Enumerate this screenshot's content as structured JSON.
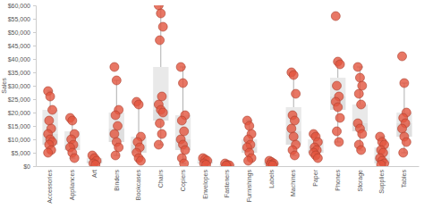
{
  "chart_data": {
    "type": "box",
    "y_label": "Sales",
    "color": "#e2553f",
    "categories": [
      "Accessories",
      "Appliances",
      "Art",
      "Binders",
      "Bookcases",
      "Chairs",
      "Copiers",
      "Envelopes",
      "Fasteners",
      "Furnishings",
      "Labels",
      "Machines",
      "Paper",
      "Phones",
      "Storage",
      "Supplies",
      "Tables"
    ],
    "points": [
      [
        28000,
        26000,
        21000,
        17000,
        14000,
        12000,
        10000,
        9000,
        8000,
        6000,
        5000
      ],
      [
        18000,
        17000,
        12000,
        10000,
        8000,
        7000,
        5000,
        3000
      ],
      [
        4000,
        3000,
        2000,
        1000,
        500
      ],
      [
        37000,
        32000,
        21000,
        19000,
        15000,
        12000,
        9000,
        7000,
        4000
      ],
      [
        24000,
        23000,
        11000,
        9000,
        7000,
        5000,
        3000,
        2000
      ],
      [
        60000,
        57000,
        52000,
        47000,
        26000,
        23000,
        21000,
        20000,
        16000,
        12000,
        8000
      ],
      [
        37000,
        31000,
        19000,
        17000,
        13000,
        10000,
        8000,
        6000,
        3000,
        1000
      ],
      [
        3000,
        2500,
        2000,
        1000,
        500
      ],
      [
        1000,
        500,
        300,
        200
      ],
      [
        17000,
        15000,
        12000,
        10000,
        8000,
        7000,
        5000,
        3000,
        2000
      ],
      [
        2000,
        1500,
        1000,
        500,
        300
      ],
      [
        35000,
        34000,
        27000,
        19000,
        17000,
        14000,
        11000,
        8000,
        6000,
        4000
      ],
      [
        12000,
        11000,
        9000,
        7000,
        6000,
        5000,
        4000,
        3000
      ],
      [
        56000,
        39000,
        38000,
        30000,
        26000,
        24000,
        22000,
        18000,
        13000,
        9000
      ],
      [
        37000,
        33000,
        30000,
        27000,
        23000,
        16000,
        14000,
        12000,
        8000,
        6000
      ],
      [
        11000,
        9000,
        8000,
        6000,
        5000,
        3000,
        2000,
        1000,
        500
      ],
      [
        41000,
        31000,
        20000,
        18000,
        16000,
        14000,
        11000,
        9000,
        5000
      ]
    ],
    "boxes": [
      {
        "whisker_low": 5000,
        "q1": 8000,
        "median": 12000,
        "q3": 21000,
        "whisker_high": 28000
      },
      {
        "whisker_low": 3000,
        "q1": 6000,
        "median": 8000,
        "q3": 13000,
        "whisker_high": 18000
      },
      {
        "whisker_low": 500,
        "q1": 1000,
        "median": 2000,
        "q3": 3000,
        "whisker_high": 4000
      },
      {
        "whisker_low": 4000,
        "q1": 9000,
        "median": 14000,
        "q3": 20000,
        "whisker_high": 32000
      },
      {
        "whisker_low": 2000,
        "q1": 5000,
        "median": 8000,
        "q3": 11000,
        "whisker_high": 24000
      },
      {
        "whisker_low": 8000,
        "q1": 17000,
        "median": 21000,
        "q3": 37000,
        "whisker_high": 60000
      },
      {
        "whisker_low": 1000,
        "q1": 6000,
        "median": 10000,
        "q3": 19000,
        "whisker_high": 37000
      },
      {
        "whisker_low": 500,
        "q1": 1000,
        "median": 1500,
        "q3": 2500,
        "whisker_high": 3000
      },
      {
        "whisker_low": 200,
        "q1": 200,
        "median": 400,
        "q3": 700,
        "whisker_high": 1000
      },
      {
        "whisker_low": 2000,
        "q1": 5000,
        "median": 7000,
        "q3": 10000,
        "whisker_high": 17000
      },
      {
        "whisker_low": 300,
        "q1": 500,
        "median": 1000,
        "q3": 1500,
        "whisker_high": 2000
      },
      {
        "whisker_low": 4000,
        "q1": 8000,
        "median": 13000,
        "q3": 22000,
        "whisker_high": 35000
      },
      {
        "whisker_low": 3000,
        "q1": 5000,
        "median": 6000,
        "q3": 10000,
        "whisker_high": 12000
      },
      {
        "whisker_low": 9000,
        "q1": 21000,
        "median": 26000,
        "q3": 33000,
        "whisker_high": 39000
      },
      {
        "whisker_low": 6000,
        "q1": 13000,
        "median": 16000,
        "q3": 23000,
        "whisker_high": 37000
      },
      {
        "whisker_low": 500,
        "q1": 1000,
        "median": 3000,
        "q3": 7000,
        "whisker_high": 11000
      },
      {
        "whisker_low": 5000,
        "q1": 11000,
        "median": 16000,
        "q3": 20000,
        "whisker_high": 31000
      }
    ],
    "ylim": [
      0,
      60000
    ],
    "yticks": [
      {
        "value": 0,
        "label": "$0"
      },
      {
        "value": 5000,
        "label": "$5,000"
      },
      {
        "value": 10000,
        "label": "$10,000"
      },
      {
        "value": 15000,
        "label": "$15,000"
      },
      {
        "value": 20000,
        "label": "$20,000"
      },
      {
        "value": 25000,
        "label": "$25,000"
      },
      {
        "value": 30000,
        "label": "$30,000"
      },
      {
        "value": 35000,
        "label": "$35,000"
      },
      {
        "value": 40000,
        "label": "$40,000"
      },
      {
        "value": 45000,
        "label": "$45,000"
      },
      {
        "value": 50000,
        "label": "$50,000"
      },
      {
        "value": 55000,
        "label": "$55,000"
      },
      {
        "value": 60000,
        "label": "$60,000"
      }
    ],
    "grid": false
  }
}
